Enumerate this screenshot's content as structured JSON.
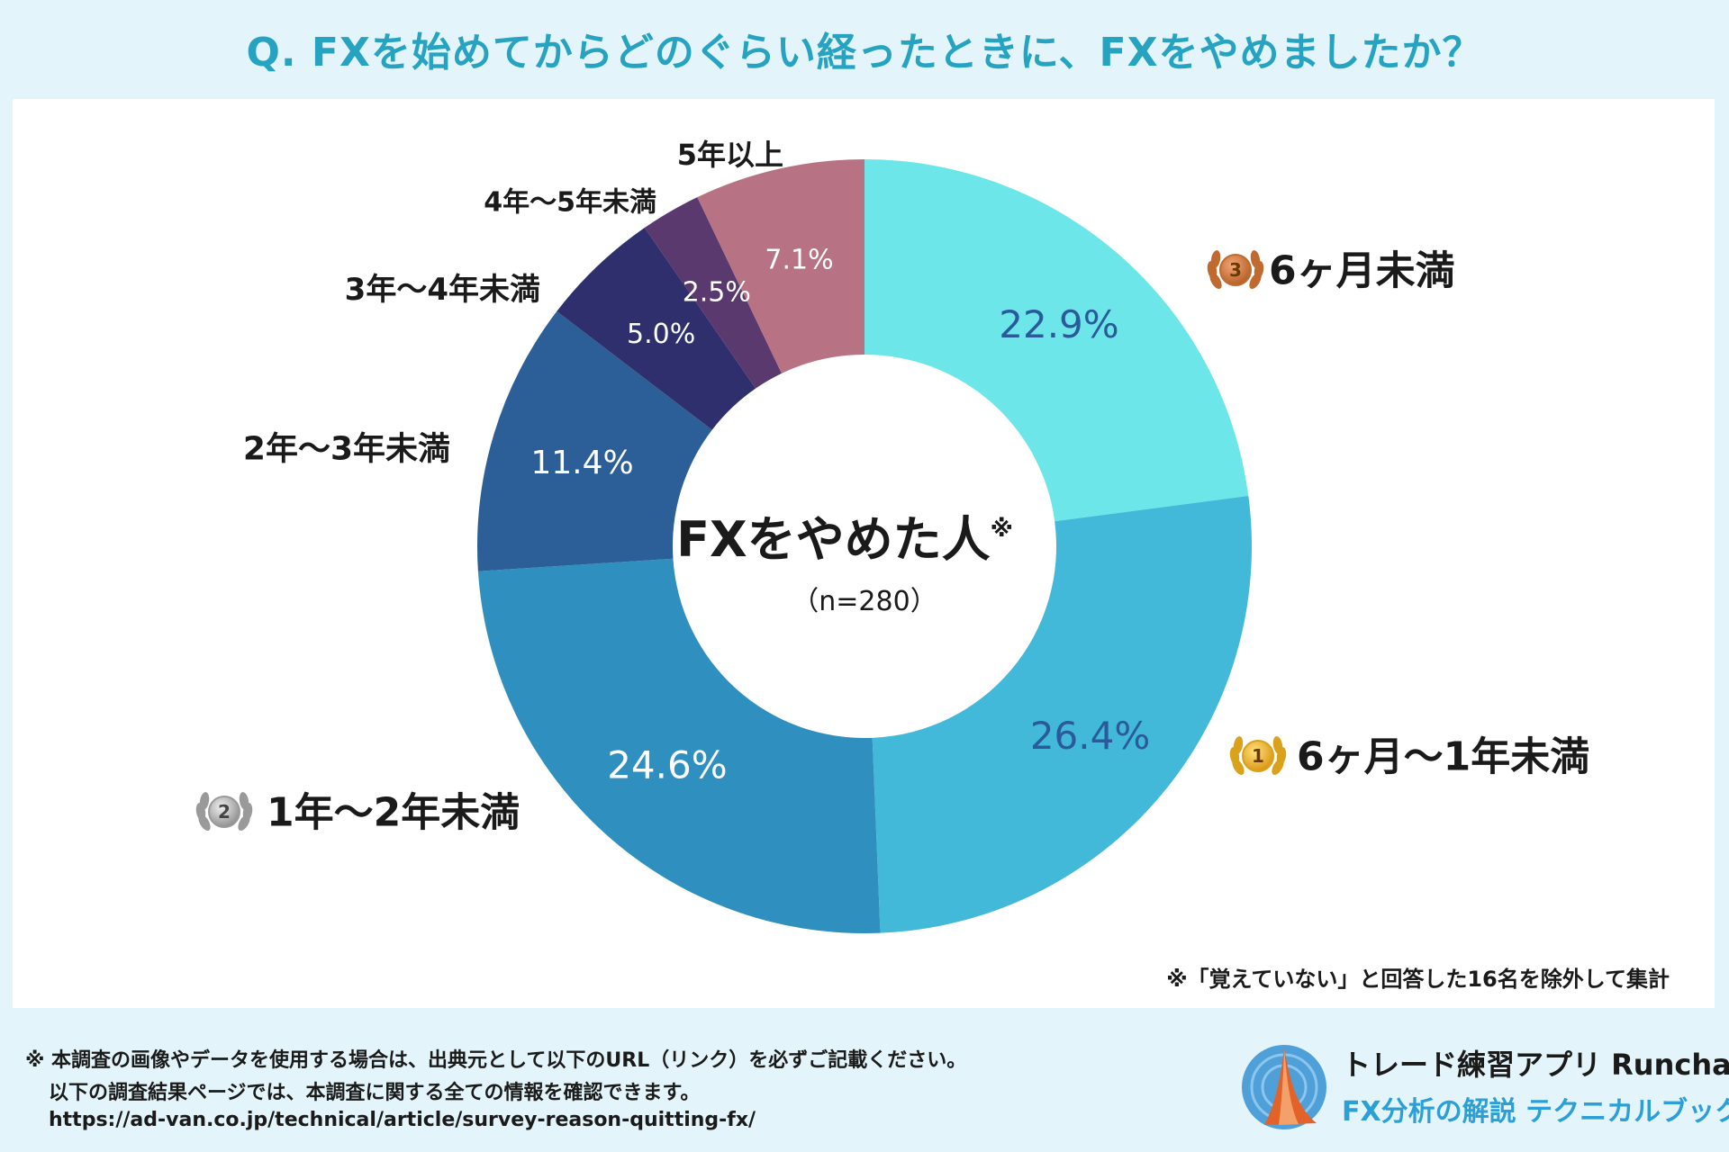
{
  "header": {
    "title": "Q. FXを始めてからどのぐらい経ったときに、FXをやめましたか？"
  },
  "chart_data": {
    "type": "pie",
    "categories": [
      "6ヶ月未満",
      "6ヶ月〜1年未満",
      "1年〜2年未満",
      "2年〜3年未満",
      "3年〜4年未満",
      "4年〜5年未満",
      "5年以上"
    ],
    "values": [
      22.9,
      26.4,
      24.6,
      11.4,
      5.0,
      2.5,
      7.1
    ],
    "value_labels": [
      "22.9%",
      "26.4%",
      "24.6%",
      "11.4%",
      "5.0%",
      "2.5%",
      "7.1%"
    ],
    "colors": [
      "#6de6e9",
      "#42b9d8",
      "#2f90c0",
      "#2c5f97",
      "#2e2f6c",
      "#5a3a6e",
      "#b77384"
    ],
    "value_label_colors": [
      "#2a5a9a",
      "#2a5a9a",
      "#ffffff",
      "#ffffff",
      "#ffffff",
      "#ffffff",
      "#ffffff"
    ],
    "ranks": [
      3,
      1,
      2,
      null,
      null,
      null,
      null
    ],
    "center_title": "FXをやめた人",
    "center_mark": "※",
    "center_n": "（n=280）",
    "note": "※「覚えていない」と回答した16名を除外して集計"
  },
  "footer": {
    "line1": "※ 本調査の画像やデータを使用する場合は、出典元として以下のURL（リンク）を必ずご記載ください。",
    "line2": "以下の調査結果ページでは、本調査に関する全ての情報を確認できます。",
    "url": "https://ad-van.co.jp/technical/article/survey-reason-quitting-fx/",
    "brand_name": "トレード練習アプリ  Runcha",
    "brand_sub": "FX分析の解説  テクニカルブック"
  }
}
